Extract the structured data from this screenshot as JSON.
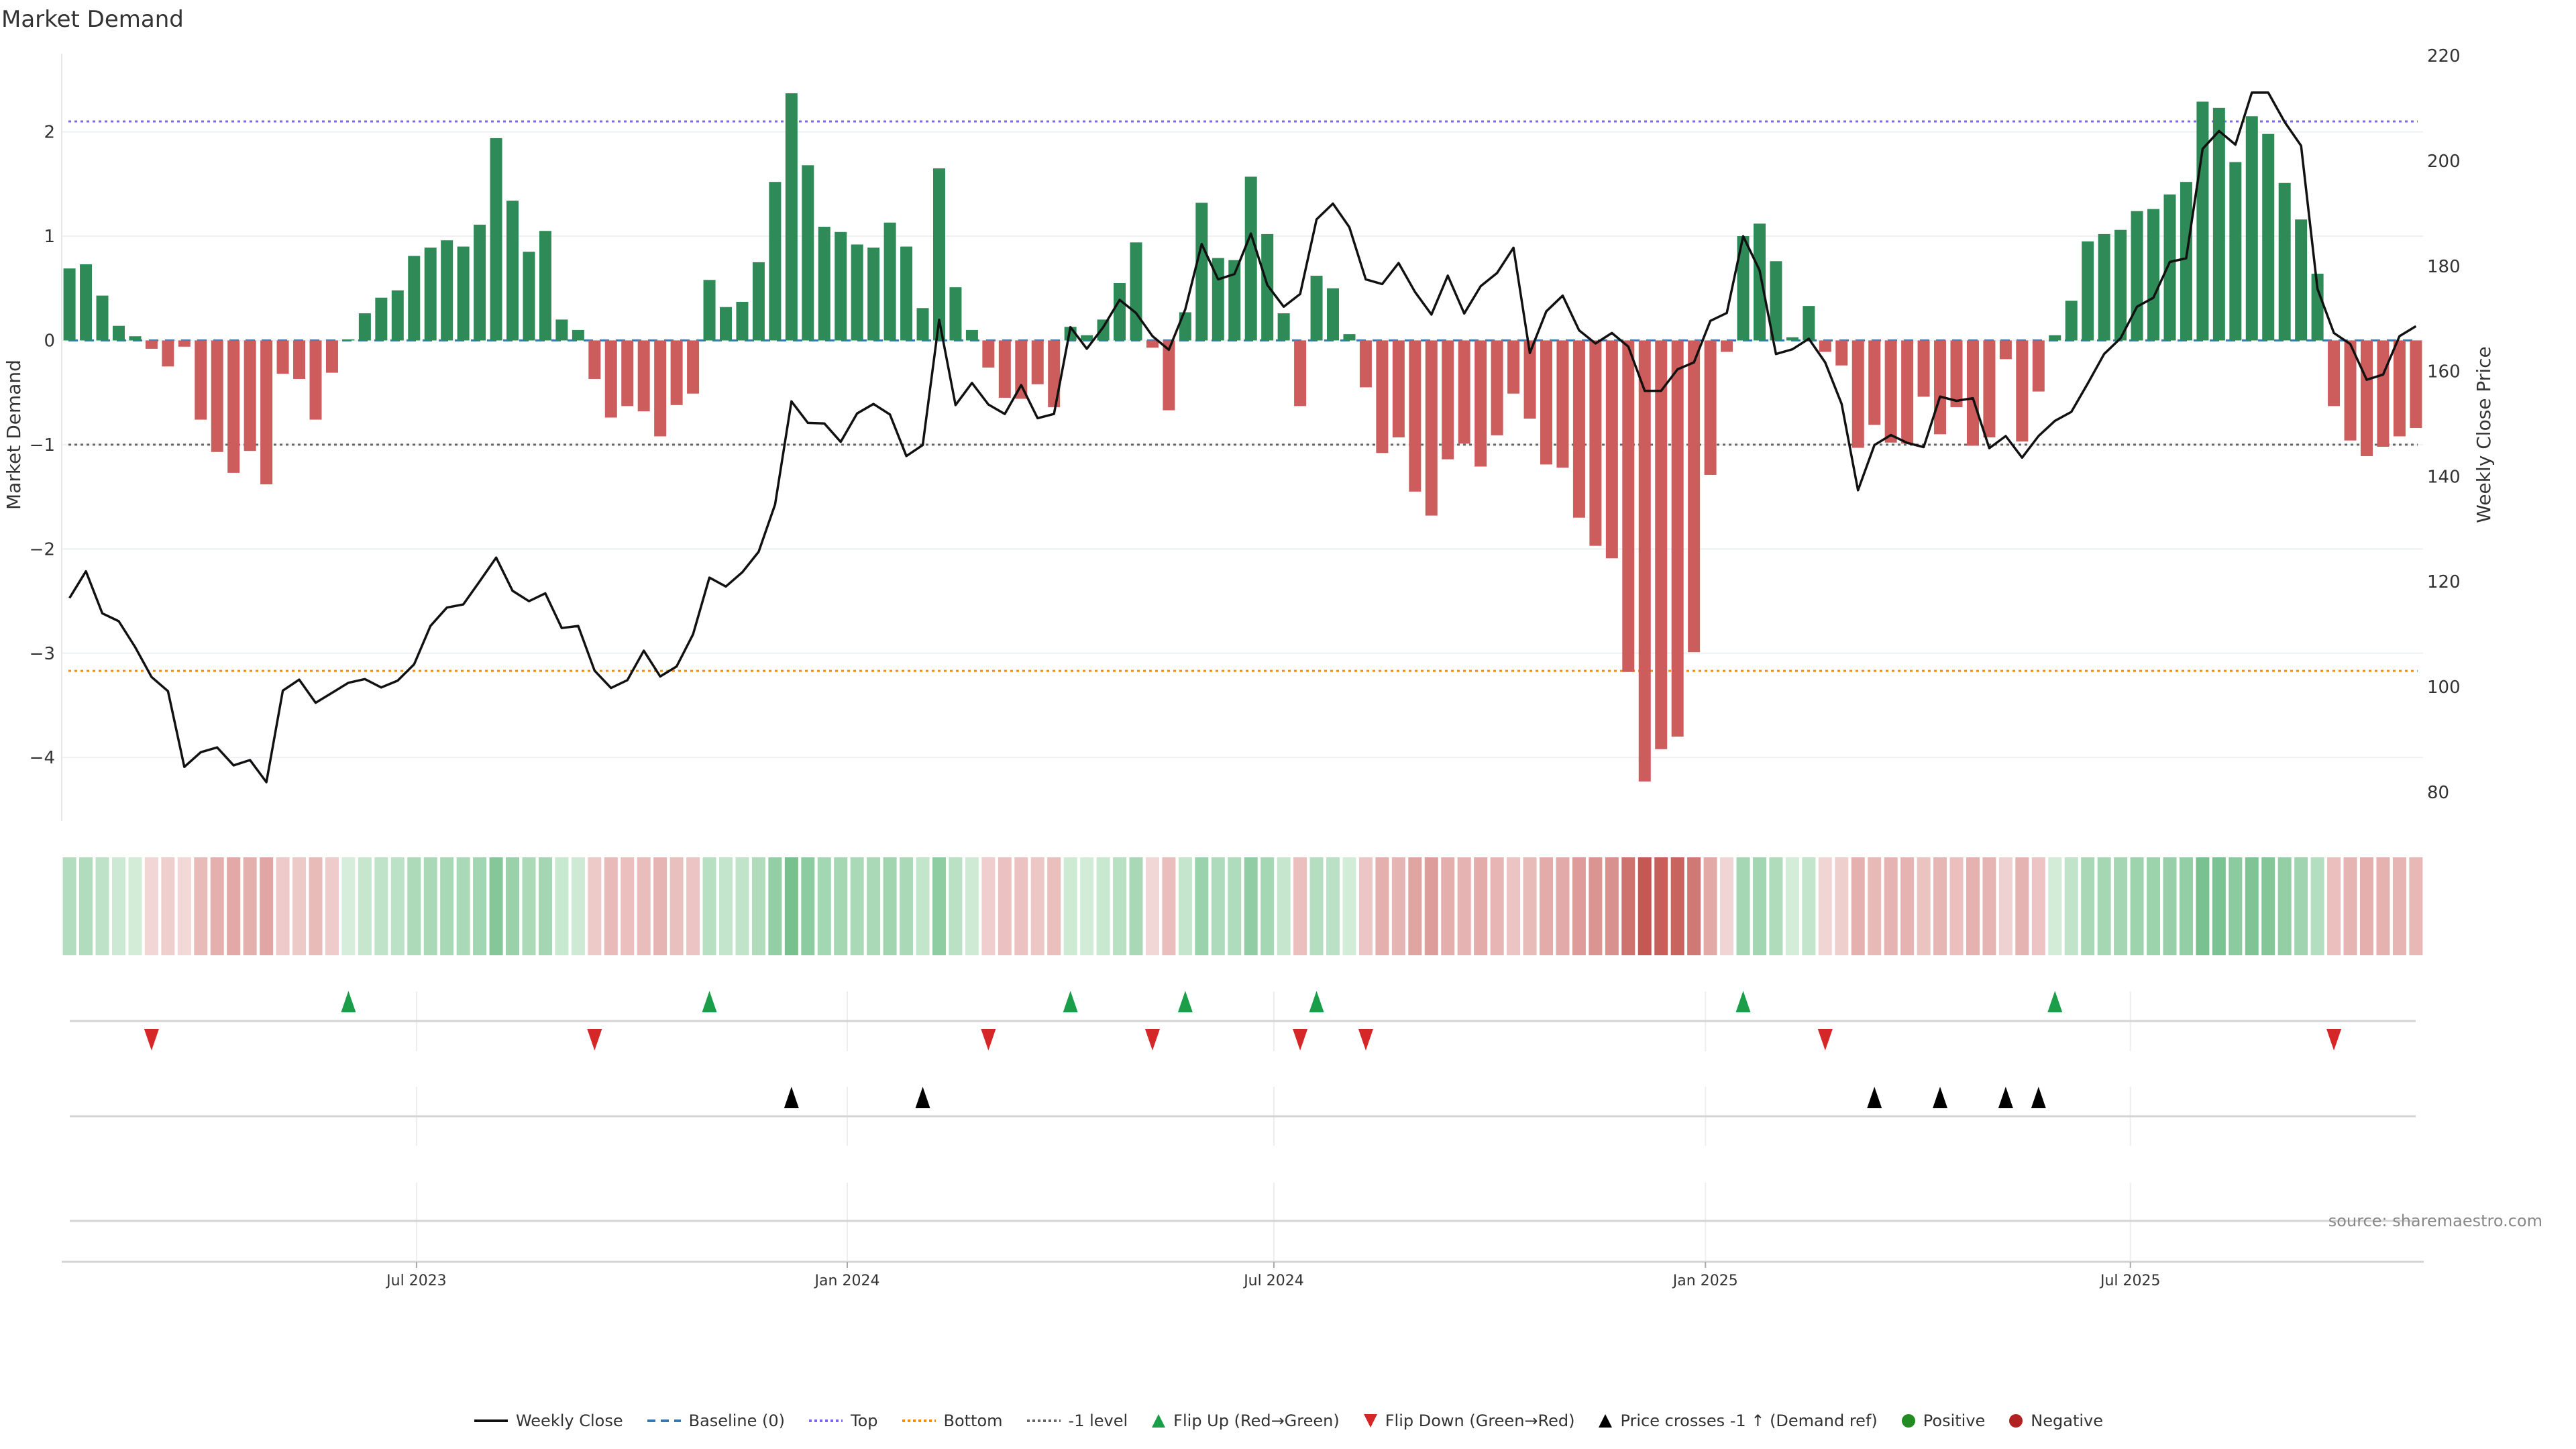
{
  "title": "Market Demand",
  "source": "source: sharemaestro.com",
  "colors": {
    "positive_bar": "#2e8b57",
    "negative_bar": "#cd5c5c",
    "price_line": "#111111",
    "baseline": "#3a78b0",
    "top": "#7b68ee",
    "bottom": "#ff8c00",
    "minus1": "#666666",
    "flip_up": "#1a9e4a",
    "flip_down": "#d62728",
    "price_cross": "#000000",
    "positive_dot": "#228b22",
    "negative_dot": "#b22222"
  },
  "chart_data": {
    "type": "bar",
    "title": "Market Demand",
    "xlabel": "",
    "ylabel": "Market Demand",
    "y2label": "Weekly Close Price",
    "ylim": [
      -4.61,
      2.75
    ],
    "y2lim": [
      74.5,
      220.4
    ],
    "yticks": [
      "2",
      "1",
      "0",
      "−1",
      "−2",
      "−3",
      "−4"
    ],
    "yticks_values": [
      2,
      1,
      0,
      -1,
      -2,
      -3,
      -4
    ],
    "y2ticks": [
      "220",
      "200",
      "180",
      "160",
      "140",
      "120",
      "100",
      "80"
    ],
    "y2ticks_values": [
      220,
      200,
      180,
      160,
      140,
      120,
      100,
      80
    ],
    "xticks": [
      {
        "label": "Jul 2023",
        "week": 21.15
      },
      {
        "label": "Jan 2024",
        "week": 47.4
      },
      {
        "label": "Jul 2024",
        "week": 73.4
      },
      {
        "label": "Jan 2025",
        "week": 99.7
      },
      {
        "label": "Jul 2025",
        "week": 125.6
      }
    ],
    "reference_lines": {
      "top": 2.1,
      "baseline": 0,
      "minus1": -1,
      "bottom": -3.17
    },
    "series": [
      {
        "name": "Market Demand",
        "kind": "bar",
        "values": [
          0.69,
          0.73,
          0.43,
          0.14,
          0.04,
          -0.08,
          -0.25,
          -0.06,
          -0.76,
          -1.07,
          -1.27,
          -1.06,
          -1.38,
          -0.32,
          -0.37,
          -0.76,
          -0.31,
          0.01,
          0.26,
          0.41,
          0.48,
          0.81,
          0.89,
          0.96,
          0.9,
          1.11,
          1.94,
          1.34,
          0.85,
          1.05,
          0.2,
          0.1,
          -0.37,
          -0.74,
          -0.63,
          -0.68,
          -0.92,
          -0.62,
          -0.51,
          0.58,
          0.32,
          0.37,
          0.75,
          1.52,
          2.37,
          1.68,
          1.09,
          1.04,
          0.92,
          0.89,
          1.13,
          0.9,
          0.31,
          1.65,
          0.51,
          0.1,
          -0.26,
          -0.55,
          -0.56,
          -0.42,
          -0.64,
          0.13,
          0.05,
          0.2,
          0.55,
          0.94,
          -0.07,
          -0.67,
          0.27,
          1.32,
          0.79,
          0.77,
          1.57,
          1.02,
          0.26,
          -0.63,
          0.62,
          0.5,
          0.06,
          -0.45,
          -1.08,
          -0.93,
          -1.45,
          -1.68,
          -1.14,
          -0.99,
          -1.21,
          -0.91,
          -0.51,
          -0.75,
          -1.19,
          -1.22,
          -1.7,
          -1.97,
          -2.09,
          -3.18,
          -4.23,
          -3.92,
          -3.8,
          -2.99,
          -1.29,
          -0.11,
          1.0,
          1.12,
          0.76,
          0.03,
          0.33,
          -0.11,
          -0.24,
          -1.03,
          -0.81,
          -0.98,
          -0.99,
          -0.54,
          -0.9,
          -0.64,
          -1.01,
          -0.93,
          -0.18,
          -0.97,
          -0.49,
          0.05,
          0.38,
          0.95,
          1.02,
          1.06,
          1.24,
          1.26,
          1.4,
          1.52,
          2.29,
          2.23,
          1.71,
          2.15,
          1.98,
          1.51,
          1.16,
          0.64,
          -0.63,
          -0.96,
          -1.11,
          -1.02,
          -0.92,
          -0.84
        ]
      },
      {
        "name": "Weekly Close",
        "kind": "line",
        "axis": "right",
        "values": [
          116.9,
          122.0,
          114.0,
          112.5,
          107.6,
          101.9,
          99.2,
          84.8,
          87.6,
          88.5,
          85.1,
          86.1,
          81.9,
          99.3,
          101.4,
          97.0,
          98.9,
          100.8,
          101.5,
          99.9,
          101.2,
          104.3,
          111.6,
          115.1,
          115.7,
          120.1,
          124.6,
          118.3,
          116.3,
          117.8,
          111.2,
          111.6,
          103.1,
          99.8,
          101.3,
          106.9,
          102.0,
          103.9,
          110.0,
          120.8,
          119.1,
          121.8,
          125.7,
          134.7,
          154.3,
          150.2,
          150.1,
          146.6,
          152.0,
          153.8,
          151.8,
          143.9,
          146.0,
          169.8,
          153.6,
          157.8,
          153.7,
          151.9,
          157.4,
          151.1,
          151.9,
          168.4,
          164.3,
          168.4,
          173.6,
          171.1,
          166.7,
          164.1,
          171.8,
          184.2,
          177.5,
          178.5,
          186.2,
          176.4,
          172.3,
          174.7,
          188.9,
          191.9,
          187.4,
          177.5,
          176.6,
          180.6,
          175.1,
          170.8,
          178.2,
          171.0,
          176.2,
          178.7,
          183.5,
          163.5,
          171.4,
          174.4,
          167.8,
          165.3,
          167.3,
          164.7,
          156.3,
          156.3,
          160.4,
          161.7,
          169.6,
          171.1,
          185.7,
          179.2,
          163.3,
          164.2,
          166.2,
          161.7,
          153.8,
          137.4,
          146.0,
          147.9,
          146.4,
          145.6,
          155.2,
          154.4,
          154.9,
          145.4,
          147.7,
          143.6,
          147.7,
          150.6,
          152.3,
          157.7,
          163.3,
          166.3,
          172.3,
          174.0,
          180.8,
          181.5,
          202.3,
          205.7,
          203.1,
          213.0,
          213.0,
          207.4,
          202.9,
          175.7,
          167.3,
          165.2,
          158.4,
          159.4,
          166.7,
          168.6
        ]
      }
    ],
    "flip_up_weeks": [
      17,
      39,
      61,
      68,
      76,
      102,
      121
    ],
    "flip_down_weeks": [
      5,
      32,
      56,
      66,
      75,
      79,
      107,
      138
    ],
    "price_cross_weeks": [
      44,
      52,
      110,
      114,
      118,
      120
    ],
    "legend": {
      "placement": "bottom-center",
      "items": [
        {
          "label": "Weekly Close",
          "symbol": "line-solid",
          "color_key": "price_line"
        },
        {
          "label": "Baseline (0)",
          "symbol": "line-dashed",
          "color_key": "baseline"
        },
        {
          "label": "Top",
          "symbol": "line-dotted",
          "color_key": "top"
        },
        {
          "label": "Bottom",
          "symbol": "line-dotted",
          "color_key": "bottom"
        },
        {
          "label": "-1 level",
          "symbol": "line-dotted",
          "color_key": "minus1"
        },
        {
          "label": "Flip Up (Red→Green)",
          "symbol": "triangle-up",
          "color_key": "flip_up"
        },
        {
          "label": "Flip Down (Green→Red)",
          "symbol": "triangle-down",
          "color_key": "flip_down"
        },
        {
          "label": "Price crosses -1 ↑ (Demand ref)",
          "symbol": "triangle-up",
          "color_key": "price_cross"
        },
        {
          "label": "Positive",
          "symbol": "circle",
          "color_key": "positive_dot"
        },
        {
          "label": "Negative",
          "symbol": "circle",
          "color_key": "negative_dot"
        }
      ]
    }
  }
}
